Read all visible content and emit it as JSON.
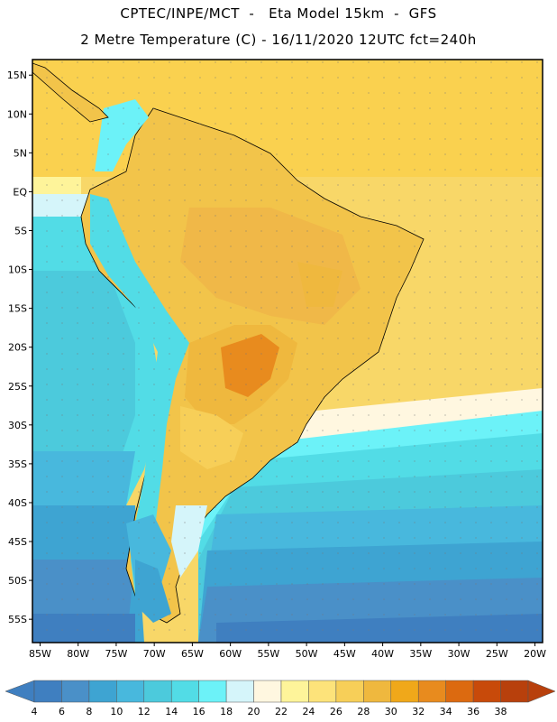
{
  "header": {
    "line1": "CPTEC/INPE/MCT  -   Eta Model 15km  -  GFS",
    "line2": "2 Metre Temperature (C) - 16/11/2020 12UTC fct=240h"
  },
  "map": {
    "lat_labels": [
      "15N",
      "10N",
      "5N",
      "EQ",
      "5S",
      "10S",
      "15S",
      "20S",
      "25S",
      "30S",
      "35S",
      "40S",
      "45S",
      "50S",
      "55S"
    ],
    "lat_values": [
      15,
      10,
      5,
      0,
      -5,
      -10,
      -15,
      -20,
      -25,
      -30,
      -35,
      -40,
      -45,
      -50,
      -55
    ],
    "lon_labels": [
      "85W",
      "80W",
      "75W",
      "70W",
      "65W",
      "60W",
      "55W",
      "50W",
      "45W",
      "40W",
      "35W",
      "30W",
      "25W",
      "20W"
    ],
    "lon_values": [
      -85,
      -80,
      -75,
      -70,
      -65,
      -60,
      -55,
      -50,
      -45,
      -40,
      -35,
      -30,
      -25,
      -20
    ],
    "extent": {
      "lon_min": -86,
      "lon_max": -19,
      "lat_min": -58,
      "lat_max": 17
    }
  },
  "colorbar": {
    "labels": [
      "4",
      "6",
      "8",
      "10",
      "12",
      "14",
      "16",
      "18",
      "20",
      "22",
      "24",
      "26",
      "28",
      "30",
      "32",
      "34",
      "36",
      "38"
    ],
    "colors": [
      "#3f7fc0",
      "#4a90c8",
      "#3ea4d2",
      "#48b8dd",
      "#4ccadc",
      "#52dce6",
      "#6cf2f8",
      "#d5f5fa",
      "#fff7e0",
      "#fef49a",
      "#fde37a",
      "#f7cf58",
      "#efb83e",
      "#f0a81a",
      "#e88b1e",
      "#dc6a10",
      "#c84a0a",
      "#b8400c"
    ]
  }
}
